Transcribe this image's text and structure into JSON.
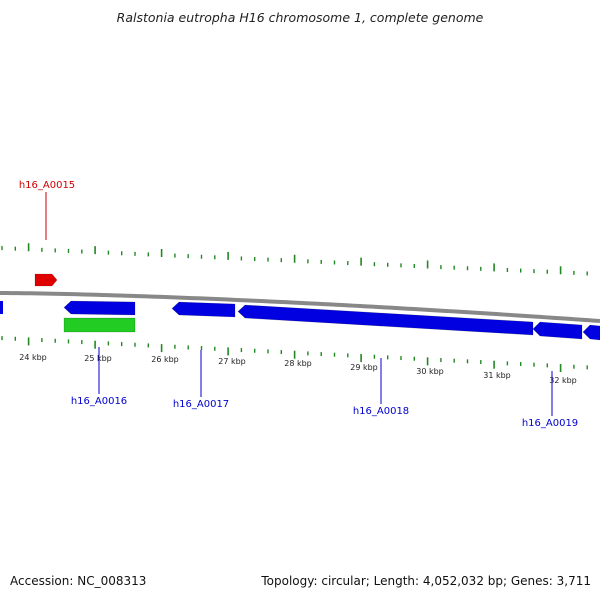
{
  "title": "Ralstonia eutropha H16 chromosome 1, complete genome",
  "footer": {
    "accession": "Accession: NC_008313",
    "summary": "Topology: circular; Length: 4,052,032 bp; Genes: 3,711"
  },
  "colors": {
    "forward_gene": "#e00000",
    "reverse_gene": "#0000e0",
    "reverse_rna": "#22cc22",
    "backbone": "#888888",
    "ticks": "#228822",
    "forward_label": "#cc0000",
    "reverse_label": "#0000cc"
  },
  "scale": {
    "unit": "kbp",
    "labels": [
      "24 kbp",
      "25 kbp",
      "26 kbp",
      "27 kbp",
      "28 kbp",
      "29 kbp",
      "30 kbp",
      "31 kbp",
      "32 kbp"
    ]
  },
  "genes": [
    {
      "name": "h16_A0015",
      "strand": "forward"
    },
    {
      "name": "h16_A0016",
      "strand": "reverse"
    },
    {
      "name": "h16_A0017",
      "strand": "reverse"
    },
    {
      "name": "h16_A0018",
      "strand": "reverse"
    },
    {
      "name": "h16_A0019",
      "strand": "reverse"
    }
  ]
}
